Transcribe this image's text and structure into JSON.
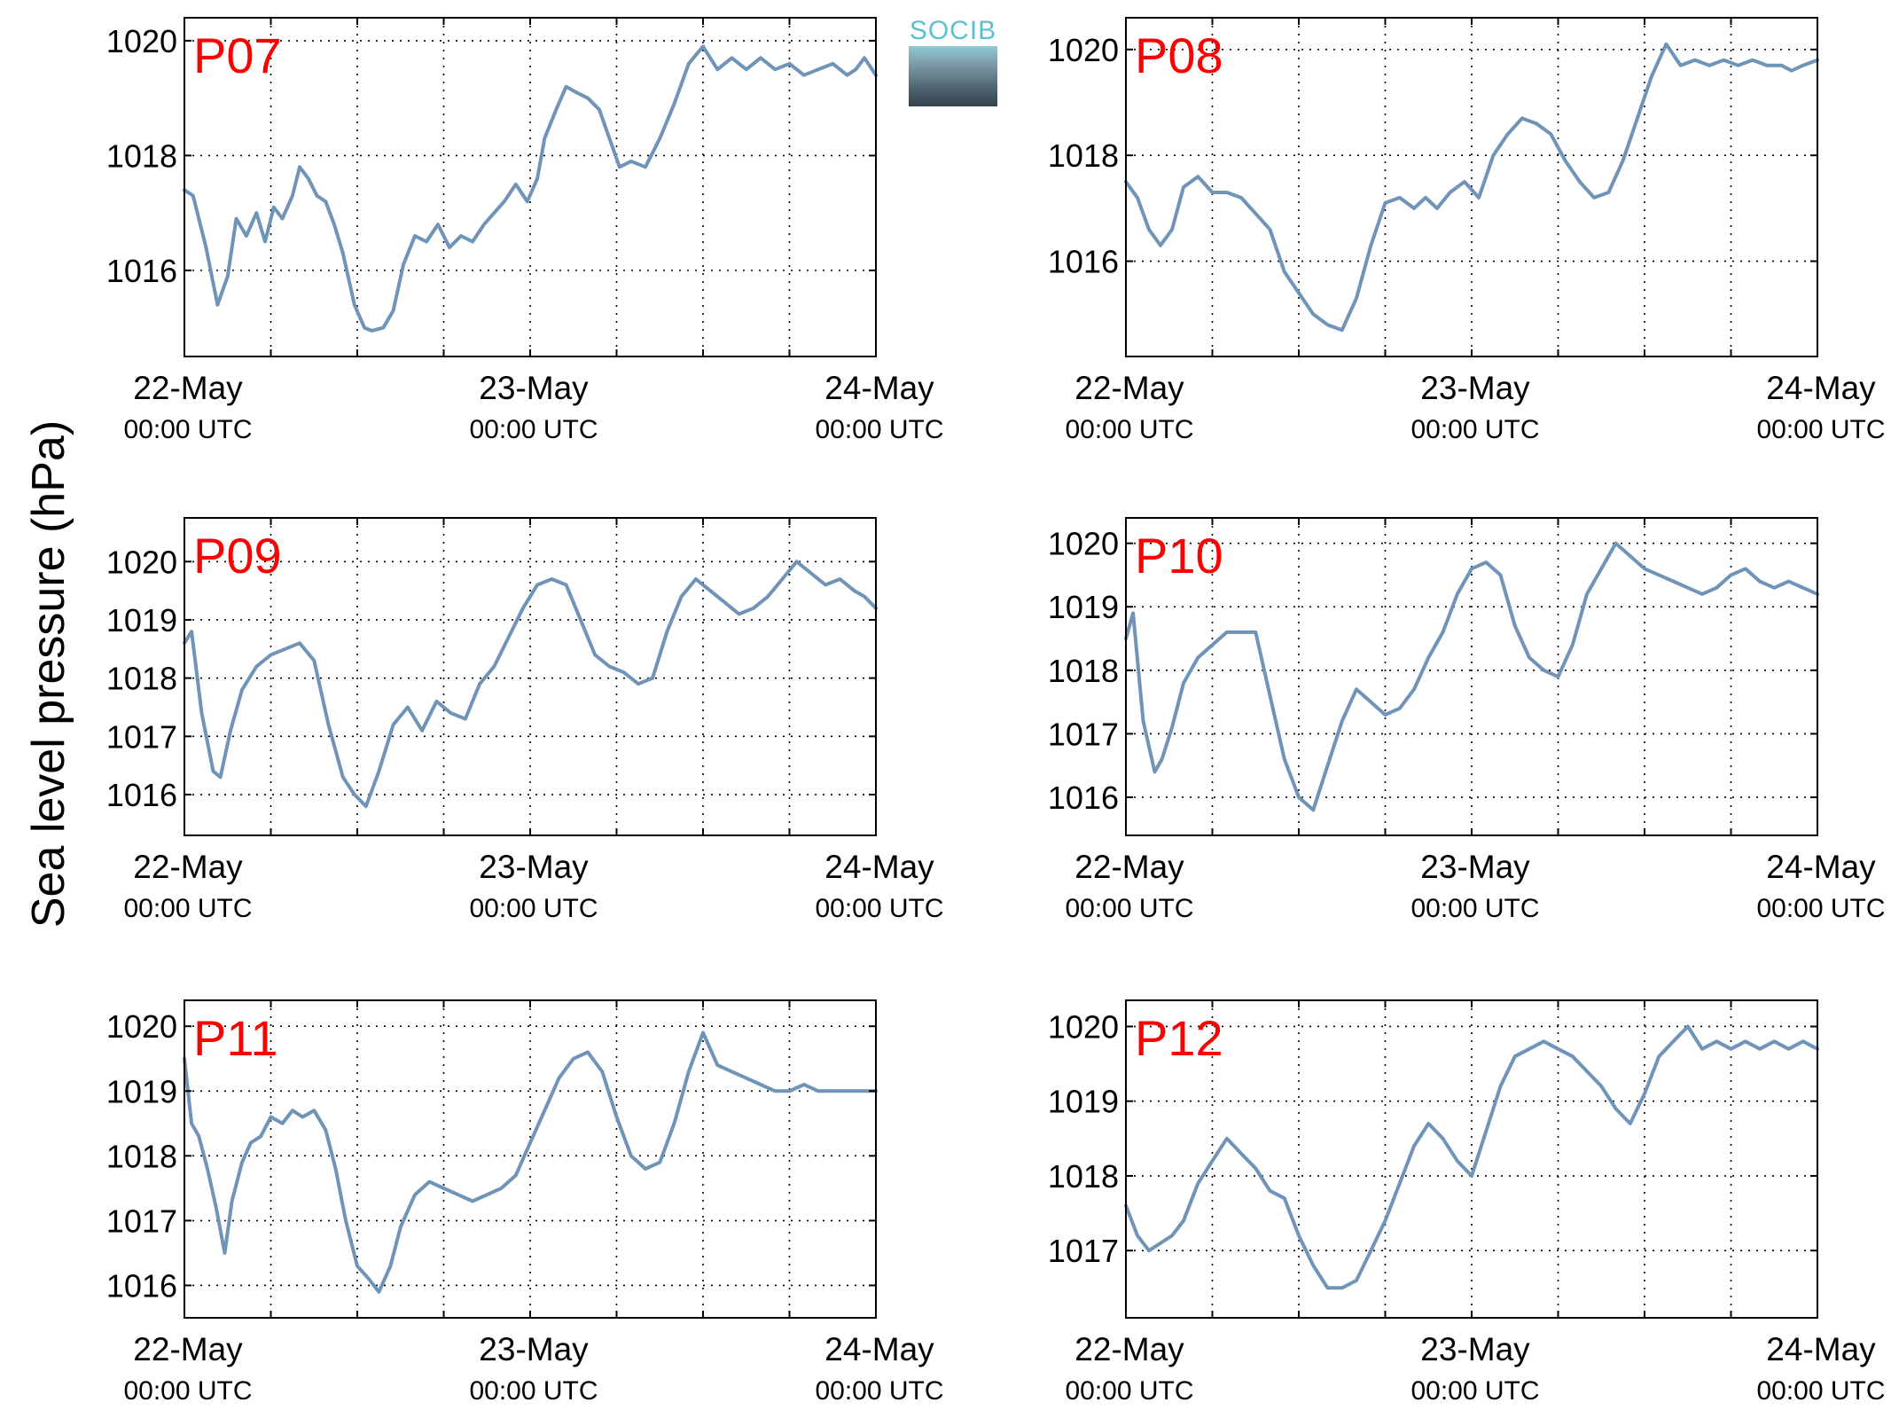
{
  "logo": {
    "text": "SOCIB"
  },
  "ylabel": "Sea level pressure (hPa)",
  "colors": {
    "line": "#6f94b8",
    "station_label": "#ff0000",
    "grid": "#000000"
  },
  "chart_data": [
    {
      "type": "line",
      "station": "P07",
      "xlim": [
        0,
        48
      ],
      "ylim": [
        1014.5,
        1020.4
      ],
      "yticks": [
        1016,
        1018,
        1020
      ],
      "xticks": [
        {
          "x": 0,
          "date": "22-May",
          "time": "00:00 UTC"
        },
        {
          "x": 24,
          "date": "23-May",
          "time": "00:00 UTC"
        },
        {
          "x": 48,
          "date": "24-May",
          "time": "00:00 UTC"
        }
      ],
      "grid": true,
      "series": [
        {
          "x": [
            0,
            0.6,
            1.5,
            2.3,
            3,
            3.6,
            4.3,
            5,
            5.6,
            6.2,
            6.8,
            7.5,
            8,
            8.6,
            9.2,
            9.8,
            10.4,
            11,
            11.8,
            12.5,
            13,
            13.8,
            14.5,
            15.2,
            16,
            16.8,
            17.6,
            18.4,
            19.2,
            20,
            20.8,
            21.5,
            22.2,
            23,
            23.8,
            24.5,
            25,
            25.8,
            26.5,
            27.2,
            28,
            28.8,
            29.5,
            30.2,
            31,
            32,
            33,
            34,
            35,
            36,
            37,
            38,
            39,
            40,
            41,
            42,
            43,
            44,
            45,
            46,
            46.6,
            47.2,
            48
          ],
          "y": [
            1017.4,
            1017.3,
            1016.4,
            1015.4,
            1015.9,
            1016.9,
            1016.6,
            1017.0,
            1016.5,
            1017.1,
            1016.9,
            1017.3,
            1017.8,
            1017.6,
            1017.3,
            1017.2,
            1016.8,
            1016.3,
            1015.4,
            1015.0,
            1014.95,
            1015.0,
            1015.3,
            1016.1,
            1016.6,
            1016.5,
            1016.8,
            1016.4,
            1016.6,
            1016.5,
            1016.8,
            1017.0,
            1017.2,
            1017.5,
            1017.2,
            1017.6,
            1018.3,
            1018.8,
            1019.2,
            1019.1,
            1019.0,
            1018.8,
            1018.3,
            1017.8,
            1017.9,
            1017.8,
            1018.3,
            1018.9,
            1019.6,
            1019.9,
            1019.5,
            1019.7,
            1019.5,
            1019.7,
            1019.5,
            1019.6,
            1019.4,
            1019.5,
            1019.6,
            1019.4,
            1019.5,
            1019.7,
            1019.4
          ]
        }
      ]
    },
    {
      "type": "line",
      "station": "P08",
      "xlim": [
        0,
        48
      ],
      "ylim": [
        1014.2,
        1020.6
      ],
      "yticks": [
        1016,
        1018,
        1020
      ],
      "xticks": [
        {
          "x": 0,
          "date": "22-May",
          "time": "00:00 UTC"
        },
        {
          "x": 24,
          "date": "23-May",
          "time": "00:00 UTC"
        },
        {
          "x": 48,
          "date": "24-May",
          "time": "00:00 UTC"
        }
      ],
      "grid": true,
      "series": [
        {
          "x": [
            0,
            0.8,
            1.6,
            2.4,
            3.2,
            4,
            5,
            6,
            7,
            8,
            9,
            10,
            11,
            12,
            13,
            14,
            15,
            16,
            17,
            18,
            19,
            20,
            20.8,
            21.6,
            22.5,
            23.5,
            24.5,
            25.5,
            26.5,
            27.5,
            28.5,
            29.5,
            30.5,
            31.5,
            32.5,
            33.5,
            34.5,
            35.5,
            36.5,
            37.5,
            38.5,
            39.5,
            40.5,
            41.5,
            42.5,
            43.5,
            44.5,
            45.5,
            46.2,
            47,
            48
          ],
          "y": [
            1017.5,
            1017.2,
            1016.6,
            1016.3,
            1016.6,
            1017.4,
            1017.6,
            1017.3,
            1017.3,
            1017.2,
            1016.9,
            1016.6,
            1015.8,
            1015.4,
            1015.0,
            1014.8,
            1014.7,
            1015.3,
            1016.3,
            1017.1,
            1017.2,
            1017.0,
            1017.2,
            1017.0,
            1017.3,
            1017.5,
            1017.2,
            1018.0,
            1018.4,
            1018.7,
            1018.6,
            1018.4,
            1017.9,
            1017.5,
            1017.2,
            1017.3,
            1017.9,
            1018.7,
            1019.5,
            1020.1,
            1019.7,
            1019.8,
            1019.7,
            1019.8,
            1019.7,
            1019.8,
            1019.7,
            1019.7,
            1019.6,
            1019.7,
            1019.8
          ]
        }
      ]
    },
    {
      "type": "line",
      "station": "P09",
      "xlim": [
        0,
        48
      ],
      "ylim": [
        1015.3,
        1020.75
      ],
      "yticks": [
        1016,
        1017,
        1018,
        1019,
        1020
      ],
      "xticks": [
        {
          "x": 0,
          "date": "22-May",
          "time": "00:00 UTC"
        },
        {
          "x": 24,
          "date": "23-May",
          "time": "00:00 UTC"
        },
        {
          "x": 48,
          "date": "24-May",
          "time": "00:00 UTC"
        }
      ],
      "grid": true,
      "series": [
        {
          "x": [
            0,
            0.5,
            1.2,
            2,
            2.5,
            3.2,
            4,
            5,
            6,
            7,
            8,
            9,
            10,
            11,
            11.8,
            12.6,
            13.5,
            14.5,
            15.5,
            16.5,
            17.5,
            18.5,
            19.5,
            20.5,
            21.5,
            22.5,
            23.5,
            24.5,
            25.5,
            26.5,
            27.5,
            28.5,
            29.5,
            30.5,
            31.5,
            32.5,
            33.5,
            34.5,
            35.5,
            36.5,
            37.5,
            38.5,
            39.5,
            40.5,
            41.5,
            42.5,
            43.5,
            44.5,
            45.5,
            46.5,
            47.2,
            48
          ],
          "y": [
            1018.6,
            1018.8,
            1017.4,
            1016.4,
            1016.3,
            1017.1,
            1017.8,
            1018.2,
            1018.4,
            1018.5,
            1018.6,
            1018.3,
            1017.2,
            1016.3,
            1016.0,
            1015.8,
            1016.4,
            1017.2,
            1017.5,
            1017.1,
            1017.6,
            1017.4,
            1017.3,
            1017.9,
            1018.2,
            1018.7,
            1019.2,
            1019.6,
            1019.7,
            1019.6,
            1019.0,
            1018.4,
            1018.2,
            1018.1,
            1017.9,
            1018.0,
            1018.8,
            1019.4,
            1019.7,
            1019.5,
            1019.3,
            1019.1,
            1019.2,
            1019.4,
            1019.7,
            1020.0,
            1019.8,
            1019.6,
            1019.7,
            1019.5,
            1019.4,
            1019.2
          ]
        }
      ]
    },
    {
      "type": "line",
      "station": "P10",
      "xlim": [
        0,
        48
      ],
      "ylim": [
        1015.4,
        1020.4
      ],
      "yticks": [
        1016,
        1017,
        1018,
        1019,
        1020
      ],
      "xticks": [
        {
          "x": 0,
          "date": "22-May",
          "time": "00:00 UTC"
        },
        {
          "x": 24,
          "date": "23-May",
          "time": "00:00 UTC"
        },
        {
          "x": 48,
          "date": "24-May",
          "time": "00:00 UTC"
        }
      ],
      "grid": true,
      "series": [
        {
          "x": [
            0,
            0.5,
            1.2,
            2,
            2.5,
            3.2,
            4,
            5,
            6,
            7,
            8,
            9,
            10,
            11,
            12,
            13,
            14,
            15,
            16,
            17,
            18,
            19,
            20,
            21,
            22,
            23,
            24,
            25,
            26,
            27,
            28,
            29,
            30,
            31,
            32,
            33,
            34,
            35,
            36,
            37,
            38,
            39,
            40,
            41,
            42,
            43,
            44,
            45,
            46,
            47,
            48
          ],
          "y": [
            1018.5,
            1018.9,
            1017.2,
            1016.4,
            1016.6,
            1017.1,
            1017.8,
            1018.2,
            1018.4,
            1018.6,
            1018.6,
            1018.6,
            1017.6,
            1016.6,
            1016.0,
            1015.8,
            1016.5,
            1017.2,
            1017.7,
            1017.5,
            1017.3,
            1017.4,
            1017.7,
            1018.2,
            1018.6,
            1019.2,
            1019.6,
            1019.7,
            1019.5,
            1018.7,
            1018.2,
            1018.0,
            1017.9,
            1018.4,
            1019.2,
            1019.6,
            1020.0,
            1019.8,
            1019.6,
            1019.5,
            1019.4,
            1019.3,
            1019.2,
            1019.3,
            1019.5,
            1019.6,
            1019.4,
            1019.3,
            1019.4,
            1019.3,
            1019.2
          ]
        }
      ]
    },
    {
      "type": "line",
      "station": "P11",
      "xlim": [
        0,
        48
      ],
      "ylim": [
        1015.5,
        1020.4
      ],
      "yticks": [
        1016,
        1017,
        1018,
        1019,
        1020
      ],
      "xticks": [
        {
          "x": 0,
          "date": "22-May",
          "time": "00:00 UTC"
        },
        {
          "x": 24,
          "date": "23-May",
          "time": "00:00 UTC"
        },
        {
          "x": 48,
          "date": "24-May",
          "time": "00:00 UTC"
        }
      ],
      "grid": true,
      "series": [
        {
          "x": [
            0,
            0.5,
            1,
            1.6,
            2.2,
            2.8,
            3.3,
            4,
            4.6,
            5.3,
            6,
            6.8,
            7.5,
            8.2,
            9,
            9.8,
            10.5,
            11.2,
            12,
            12.8,
            13.5,
            14.3,
            15,
            16,
            17,
            18,
            19,
            20,
            21,
            22,
            23,
            24,
            25,
            26,
            27,
            28,
            29,
            30,
            31,
            32,
            33,
            34,
            35,
            36,
            37,
            38,
            39,
            40,
            41,
            42,
            43,
            44,
            45,
            46,
            47,
            48
          ],
          "y": [
            1019.5,
            1018.5,
            1018.3,
            1017.8,
            1017.2,
            1016.5,
            1017.3,
            1017.9,
            1018.2,
            1018.3,
            1018.6,
            1018.5,
            1018.7,
            1018.6,
            1018.7,
            1018.4,
            1017.8,
            1017.0,
            1016.3,
            1016.1,
            1015.9,
            1016.3,
            1016.9,
            1017.4,
            1017.6,
            1017.5,
            1017.4,
            1017.3,
            1017.4,
            1017.5,
            1017.7,
            1018.2,
            1018.7,
            1019.2,
            1019.5,
            1019.6,
            1019.3,
            1018.6,
            1018.0,
            1017.8,
            1017.9,
            1018.5,
            1019.3,
            1019.9,
            1019.4,
            1019.3,
            1019.2,
            1019.1,
            1019.0,
            1019.0,
            1019.1,
            1019.0,
            1019.0,
            1019.0,
            1019.0,
            1019.0
          ]
        }
      ]
    },
    {
      "type": "line",
      "station": "P12",
      "xlim": [
        0,
        48
      ],
      "ylim": [
        1016.1,
        1020.35
      ],
      "yticks": [
        1017,
        1018,
        1019,
        1020
      ],
      "xticks": [
        {
          "x": 0,
          "date": "22-May",
          "time": "00:00 UTC"
        },
        {
          "x": 24,
          "date": "23-May",
          "time": "00:00 UTC"
        },
        {
          "x": 48,
          "date": "24-May",
          "time": "00:00 UTC"
        }
      ],
      "grid": true,
      "series": [
        {
          "x": [
            0,
            0.8,
            1.6,
            2.4,
            3.2,
            4,
            5,
            6,
            7,
            8,
            9,
            10,
            11,
            12,
            13,
            14,
            15,
            16,
            17,
            18,
            19,
            20,
            21,
            22,
            23,
            24,
            25,
            26,
            27,
            28,
            29,
            30,
            31,
            32,
            33,
            34,
            35,
            36,
            37,
            38,
            39,
            40,
            41,
            42,
            43,
            44,
            45,
            46,
            47,
            48
          ],
          "y": [
            1017.6,
            1017.2,
            1017.0,
            1017.1,
            1017.2,
            1017.4,
            1017.9,
            1018.2,
            1018.5,
            1018.3,
            1018.1,
            1017.8,
            1017.7,
            1017.2,
            1016.8,
            1016.5,
            1016.5,
            1016.6,
            1017.0,
            1017.4,
            1017.9,
            1018.4,
            1018.7,
            1018.5,
            1018.2,
            1018.0,
            1018.6,
            1019.2,
            1019.6,
            1019.7,
            1019.8,
            1019.7,
            1019.6,
            1019.4,
            1019.2,
            1018.9,
            1018.7,
            1019.1,
            1019.6,
            1019.8,
            1020.0,
            1019.7,
            1019.8,
            1019.7,
            1019.8,
            1019.7,
            1019.8,
            1019.7,
            1019.8,
            1019.7
          ]
        }
      ]
    }
  ]
}
